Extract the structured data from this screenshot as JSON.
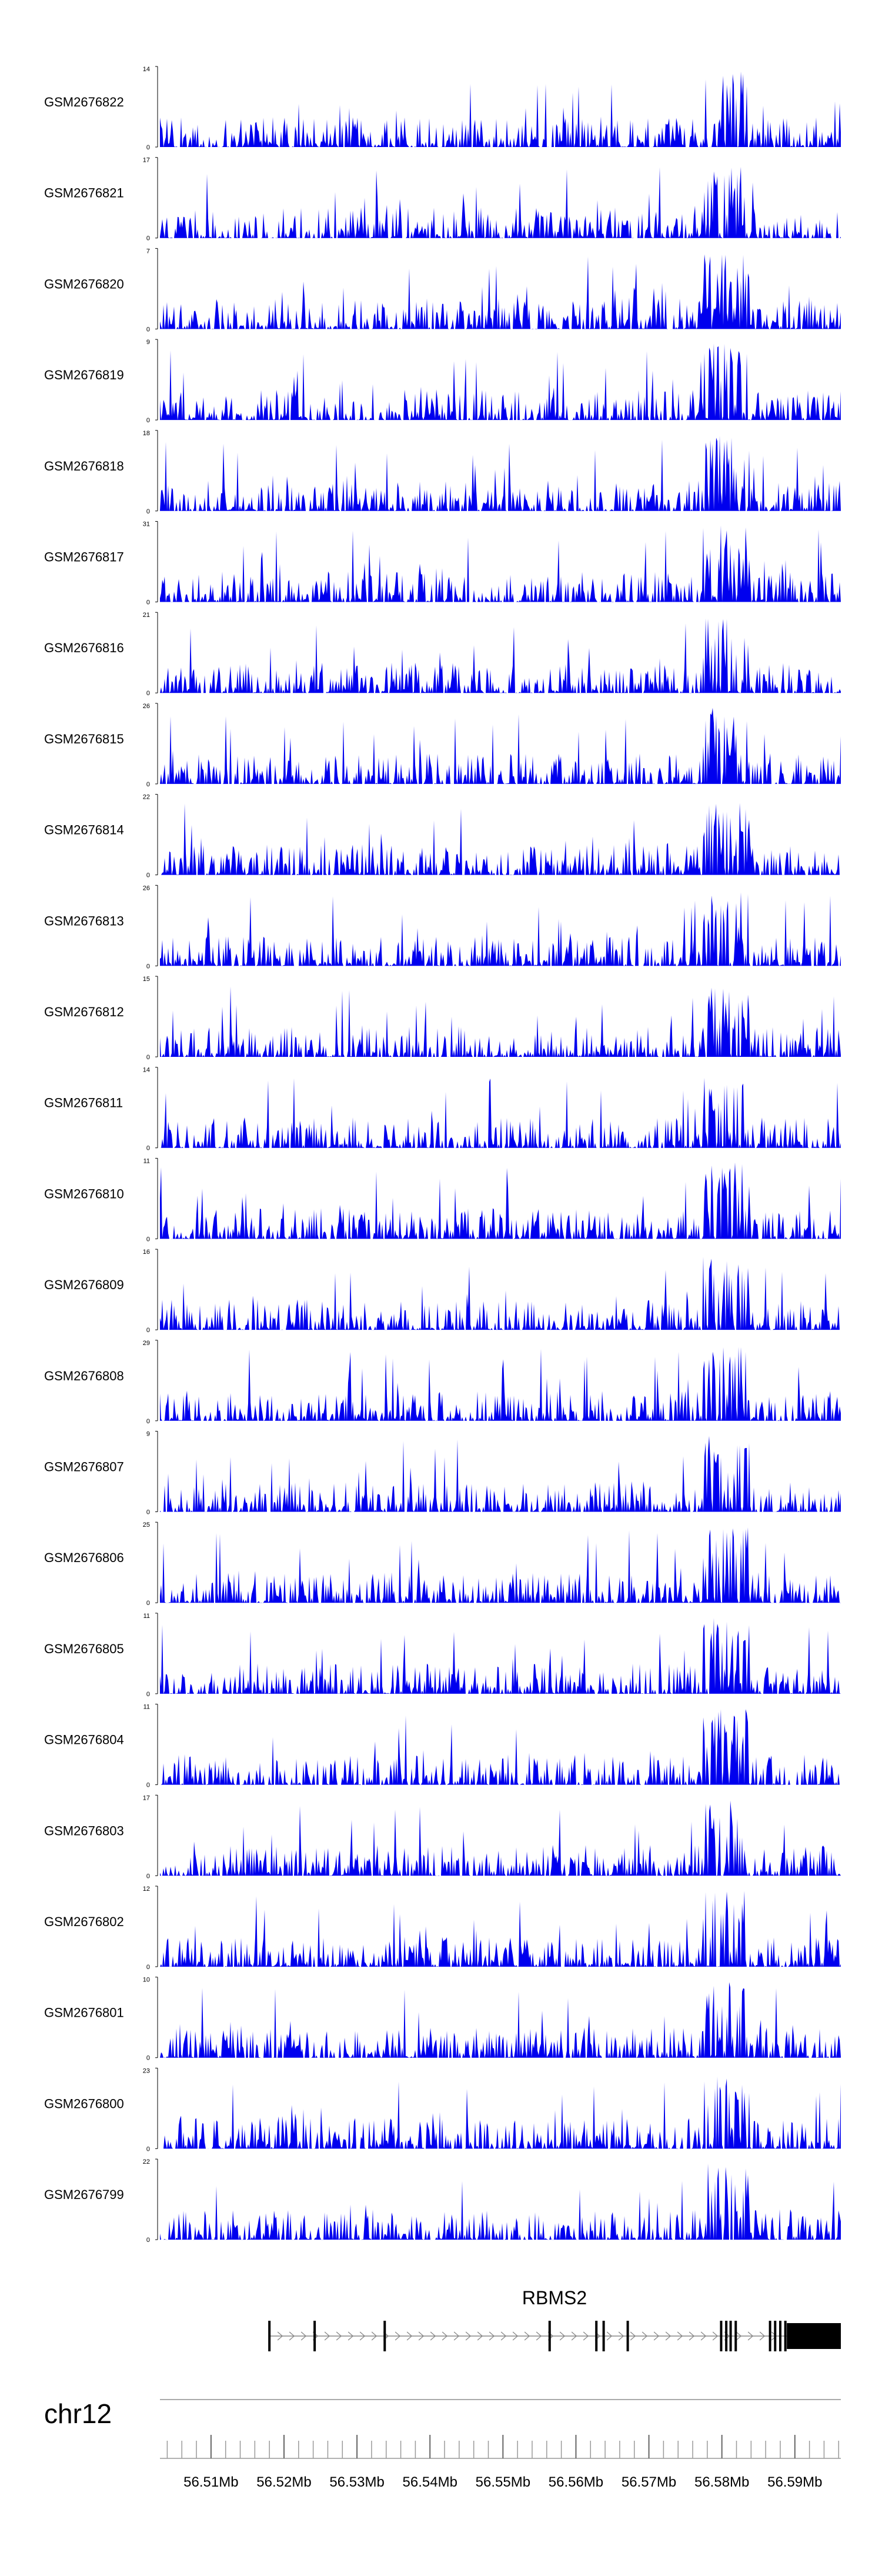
{
  "chart_data": {
    "type": "area",
    "title": "",
    "region": {
      "chromosome": "chr12",
      "start_mb": 56.503,
      "end_mb": 56.5963
    },
    "color": "#0000ee",
    "tracks": [
      {
        "name": "GSM2676822",
        "max": 14,
        "min": 0
      },
      {
        "name": "GSM2676821",
        "max": 17,
        "min": 0
      },
      {
        "name": "GSM2676820",
        "max": 7,
        "min": 0
      },
      {
        "name": "GSM2676819",
        "max": 9,
        "min": 0
      },
      {
        "name": "GSM2676818",
        "max": 18,
        "min": 0
      },
      {
        "name": "GSM2676817",
        "max": 31,
        "min": 0
      },
      {
        "name": "GSM2676816",
        "max": 21,
        "min": 0
      },
      {
        "name": "GSM2676815",
        "max": 26,
        "min": 0
      },
      {
        "name": "GSM2676814",
        "max": 22,
        "min": 0
      },
      {
        "name": "GSM2676813",
        "max": 26,
        "min": 0
      },
      {
        "name": "GSM2676812",
        "max": 15,
        "min": 0
      },
      {
        "name": "GSM2676811",
        "max": 14,
        "min": 0
      },
      {
        "name": "GSM2676810",
        "max": 11,
        "min": 0
      },
      {
        "name": "GSM2676809",
        "max": 16,
        "min": 0
      },
      {
        "name": "GSM2676808",
        "max": 29,
        "min": 0
      },
      {
        "name": "GSM2676807",
        "max": 9,
        "min": 0
      },
      {
        "name": "GSM2676806",
        "max": 25,
        "min": 0
      },
      {
        "name": "GSM2676805",
        "max": 11,
        "min": 0
      },
      {
        "name": "GSM2676804",
        "max": 11,
        "min": 0
      },
      {
        "name": "GSM2676803",
        "max": 17,
        "min": 0
      },
      {
        "name": "GSM2676802",
        "max": 12,
        "min": 0
      },
      {
        "name": "GSM2676801",
        "max": 10,
        "min": 0
      },
      {
        "name": "GSM2676800",
        "max": 23,
        "min": 0
      },
      {
        "name": "GSM2676799",
        "max": 22,
        "min": 0
      }
    ],
    "gene": {
      "name": "RBMS2",
      "strand": "+",
      "start_mb": 56.518,
      "end_mb": 56.5963,
      "exons_mb": [
        56.518,
        56.5242,
        56.5338,
        56.5564,
        56.5628,
        56.5638,
        56.5671,
        56.5799,
        56.5806,
        56.5812,
        56.5819,
        56.5866,
        56.5873,
        56.588,
        56.5887
      ],
      "utr_block_mb": [
        56.5889,
        56.5963
      ]
    },
    "x_axis": {
      "chromosome_label": "chr12",
      "tick_labels": [
        "56.51Mb",
        "56.52Mb",
        "56.53Mb",
        "56.54Mb",
        "56.55Mb",
        "56.56Mb",
        "56.57Mb",
        "56.58Mb",
        "56.59Mb"
      ],
      "tick_values_mb": [
        56.51,
        56.52,
        56.53,
        56.54,
        56.55,
        56.56,
        56.57,
        56.58,
        56.59
      ],
      "minor_tick_step_mb": 0.002
    }
  }
}
